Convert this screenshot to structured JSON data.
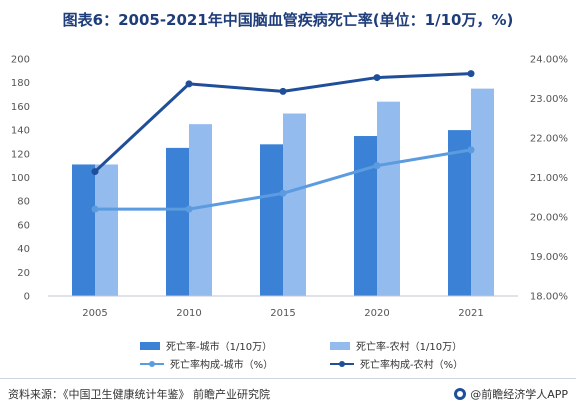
{
  "title": "图表6：2005-2021年中国脑血管疾病死亡率(单位：1/10万，%)",
  "colors": {
    "bar_city": "#3b82d6",
    "bar_rural": "#93bbee",
    "line_city": "#5b9be0",
    "line_rural": "#1f4e9a",
    "title": "#1f3d7a"
  },
  "chart_data": {
    "type": "bar+line",
    "categories": [
      "2005",
      "2010",
      "2015",
      "2020",
      "2021"
    ],
    "series": [
      {
        "name": "死亡率-城市（1/10万）",
        "type": "bar",
        "axis": "left",
        "values": [
          111,
          125,
          128,
          135,
          140
        ]
      },
      {
        "name": "死亡率-农村（1/10万）",
        "type": "bar",
        "axis": "left",
        "values": [
          111,
          145,
          154,
          164,
          175
        ]
      },
      {
        "name": "死亡率构成-城市（%）",
        "type": "line",
        "axis": "right",
        "values": [
          20.2,
          20.2,
          20.6,
          21.3,
          21.7
        ]
      },
      {
        "name": "死亡率构成-农村（%）",
        "type": "line",
        "axis": "right",
        "values": [
          21.15,
          23.37,
          23.18,
          23.53,
          23.63
        ]
      }
    ],
    "left_axis": {
      "ylim": [
        0,
        200
      ],
      "ticks": [
        0,
        20,
        40,
        60,
        80,
        100,
        120,
        140,
        160,
        180,
        200
      ]
    },
    "right_axis": {
      "ylim": [
        18,
        24
      ],
      "ticks": [
        "18.00%",
        "19.00%",
        "20.00%",
        "21.00%",
        "22.00%",
        "23.00%",
        "24.00%"
      ]
    },
    "legend_position": "bottom",
    "grid": false
  },
  "footer": {
    "source": "资料来源：《中国卫生健康统计年鉴》 前瞻产业研究院",
    "brand": "@前瞻经济学人APP"
  }
}
